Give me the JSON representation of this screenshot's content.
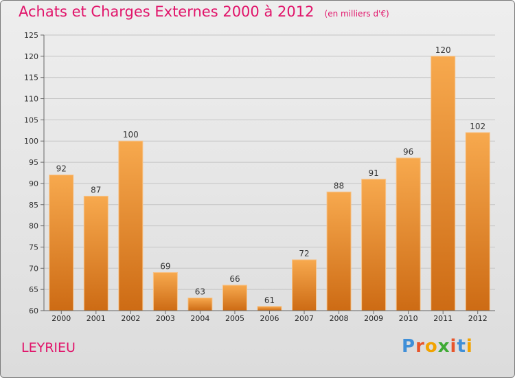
{
  "title": "Achats et Charges Externes 2000 à 2012",
  "subtitle": "(en milliers d'€)",
  "commune": "LEYRIEU",
  "logo": {
    "letters": [
      "P",
      "r",
      "o",
      "x",
      "i",
      "t",
      "i"
    ],
    "colors": [
      "#3f8fd8",
      "#e8552b",
      "#f2a300",
      "#3faa35",
      "#e8552b",
      "#3f8fd8",
      "#f2a300"
    ]
  },
  "colors": {
    "accent": "#e1146a",
    "bar_light": "#f7a94e",
    "bar_dark": "#cd6b14"
  },
  "chart_data": {
    "type": "bar",
    "categories": [
      "2000",
      "2001",
      "2002",
      "2003",
      "2004",
      "2005",
      "2006",
      "2007",
      "2008",
      "2009",
      "2010",
      "2011",
      "2012"
    ],
    "values": [
      92,
      87,
      100,
      69,
      63,
      66,
      61,
      72,
      88,
      91,
      96,
      120,
      102
    ],
    "value_labels": [
      "92",
      "87",
      "100",
      "69",
      "63",
      "66",
      "61",
      "72",
      "88",
      "91",
      "96",
      "120",
      "102"
    ],
    "yticks": [
      "60",
      "65",
      "70",
      "75",
      "80",
      "85",
      "90",
      "95",
      "100",
      "105",
      "110",
      "115",
      "120",
      "125"
    ],
    "ylim": [
      60,
      125
    ],
    "grid": true,
    "title": "Achats et Charges Externes 2000 à 2012",
    "xlabel": "",
    "ylabel": ""
  }
}
